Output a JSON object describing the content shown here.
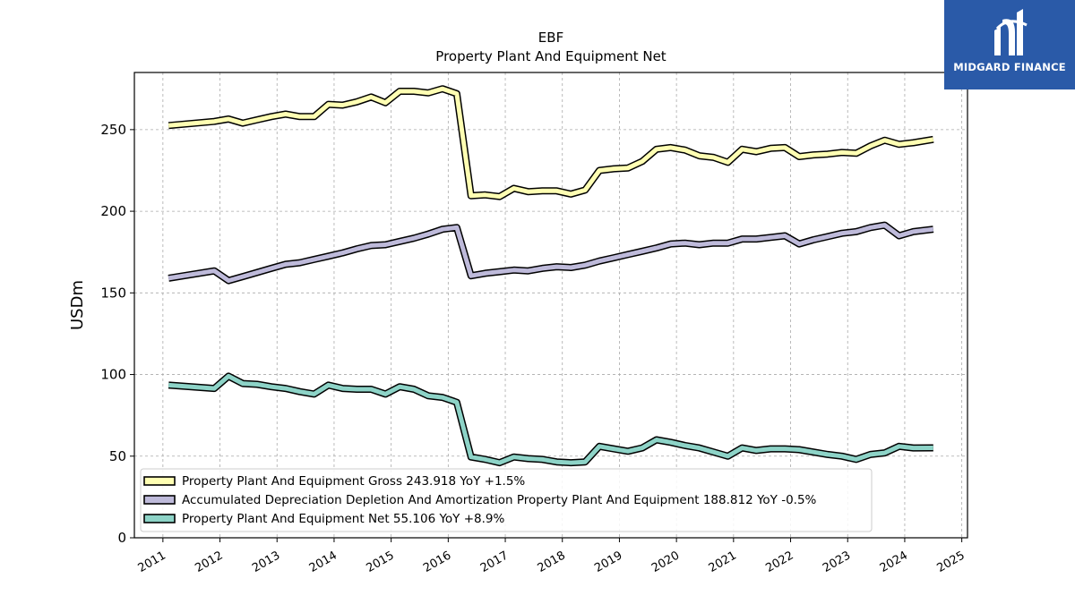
{
  "chart_data": {
    "type": "line",
    "title": "EBF",
    "subtitle": "Property Plant And Equipment Net",
    "xlabel": "",
    "ylabel": "USDm",
    "xlim": [
      2010.5,
      2025.1
    ],
    "ylim": [
      0,
      285
    ],
    "yticks": [
      0,
      50,
      100,
      150,
      200,
      250
    ],
    "xticks": [
      "2011",
      "2012",
      "2013",
      "2014",
      "2015",
      "2016",
      "2017",
      "2018",
      "2019",
      "2020",
      "2021",
      "2022",
      "2023",
      "2024",
      "2025"
    ],
    "grid": true,
    "legend_position": "lower-left",
    "x": [
      2011.1,
      2011.9,
      2012.15,
      2012.4,
      2012.65,
      2012.9,
      2013.15,
      2013.4,
      2013.65,
      2013.9,
      2014.15,
      2014.4,
      2014.65,
      2014.9,
      2015.15,
      2015.4,
      2015.65,
      2015.9,
      2016.15,
      2016.4,
      2016.65,
      2016.9,
      2017.15,
      2017.4,
      2017.65,
      2017.9,
      2018.15,
      2018.4,
      2018.65,
      2018.9,
      2019.15,
      2019.4,
      2019.65,
      2019.9,
      2020.15,
      2020.4,
      2020.65,
      2020.9,
      2021.15,
      2021.4,
      2021.65,
      2021.9,
      2022.15,
      2022.4,
      2022.65,
      2022.9,
      2023.15,
      2023.4,
      2023.65,
      2023.9,
      2024.15,
      2024.5
    ],
    "series": [
      {
        "name": "Property Plant And Equipment Gross",
        "legend_label": "Property Plant And Equipment Gross  243.918 YoY +1.5%",
        "color": "#ffffb3",
        "values": [
          252.5,
          255,
          256.5,
          254,
          256,
          258,
          259.5,
          258,
          258,
          265.5,
          265,
          267,
          270,
          266.5,
          273.5,
          273.5,
          272.5,
          275,
          272,
          209.5,
          210,
          209,
          214,
          212,
          212.5,
          212.5,
          210.5,
          213,
          225,
          226,
          226.5,
          230.5,
          238,
          239,
          237.5,
          234,
          233,
          230,
          238,
          236.5,
          238.5,
          239,
          233.5,
          234.5,
          235,
          236,
          235.5,
          240,
          243.5,
          241,
          242,
          244
        ]
      },
      {
        "name": "Accumulated Depreciation Depletion And Amortization Property Plant And Equipment",
        "legend_label": "Accumulated Depreciation Depletion And Amortization Property Plant And Equipment  188.812 YoY -0.5%",
        "color": "#bebada",
        "values": [
          159,
          163.5,
          157.5,
          160,
          162.5,
          165,
          167.5,
          168.5,
          170.5,
          172.5,
          174.5,
          177,
          179,
          179.5,
          181.5,
          183.5,
          186,
          189,
          190,
          160.5,
          162,
          163,
          164,
          163.5,
          165,
          166,
          165.5,
          167,
          169.5,
          171.5,
          173.5,
          175.5,
          177.5,
          180,
          180.5,
          179.5,
          180.5,
          180.5,
          183,
          183,
          184,
          185,
          180,
          182.5,
          184.5,
          186.5,
          187.5,
          190,
          191.5,
          185,
          187.5,
          189
        ]
      },
      {
        "name": "Property Plant And Equipment Net",
        "legend_label": "Property Plant And Equipment Net  55.106 YoY +8.9%",
        "color": "#8dd3c7",
        "values": [
          93.5,
          91.5,
          99,
          94.5,
          94,
          92.5,
          91.5,
          89.5,
          88,
          93.5,
          91.5,
          91,
          91,
          88,
          92.5,
          91,
          87,
          86,
          83,
          49.5,
          48,
          46,
          49.5,
          48.5,
          48,
          46.5,
          46,
          46.5,
          56,
          54.5,
          53,
          55,
          60,
          58.5,
          56.5,
          55,
          52.5,
          50,
          55,
          53.5,
          54.5,
          54.5,
          54,
          52.5,
          51,
          50,
          48,
          51,
          52,
          56,
          55,
          55.1
        ]
      }
    ]
  },
  "logo": {
    "text": "MIDGARD FINANCE"
  }
}
